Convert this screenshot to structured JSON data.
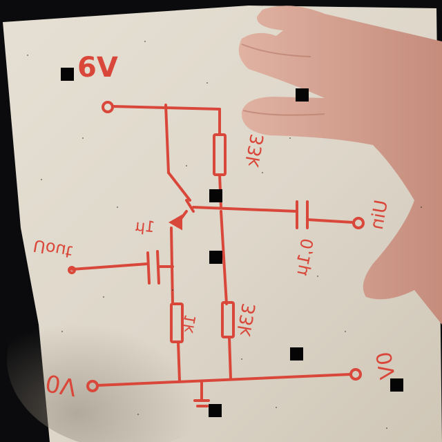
{
  "diagram": {
    "labels": {
      "supply": "6V",
      "r_top": "33k",
      "r_bottom": "33k",
      "r_emitter": "1k",
      "c_input": "1μ",
      "c_output": "0,1μ",
      "input": "Uout",
      "output": "Uin",
      "ground_left": "0V",
      "ground_right": "0V"
    }
  },
  "colors": {
    "ink": "#d9473a",
    "paper": "#ded8cc",
    "background": "#0b0b0d",
    "skin": "#d9a898"
  }
}
